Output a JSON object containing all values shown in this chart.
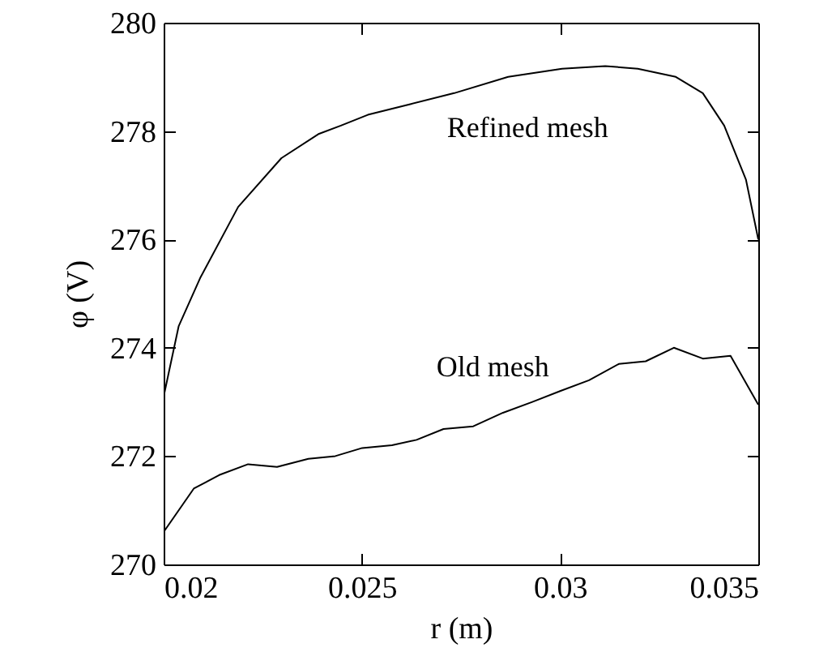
{
  "chart_data": {
    "type": "line",
    "xlabel": "r (m)",
    "ylabel": "φ (V)",
    "xlim": [
      0.02,
      0.035
    ],
    "xticks": [
      0.02,
      0.025,
      0.03,
      0.035
    ],
    "ylim": [
      270,
      280
    ],
    "yticks": [
      270,
      272,
      274,
      276,
      278,
      280
    ],
    "grid": false,
    "series": [
      {
        "name": "Refined mesh",
        "color": "#000000",
        "x": [
          0.02,
          0.02038,
          0.02093,
          0.02188,
          0.02297,
          0.02392,
          0.02447,
          0.02515,
          0.02624,
          0.02733,
          0.02869,
          0.03005,
          0.03114,
          0.03196,
          0.03292,
          0.0336,
          0.03414,
          0.03469,
          0.035
        ],
        "values": [
          273.1,
          274.4,
          275.3,
          276.6,
          277.5,
          277.95,
          278.1,
          278.3,
          278.5,
          278.7,
          279.0,
          279.15,
          279.2,
          279.15,
          279.0,
          278.7,
          278.1,
          277.1,
          276.0
        ]
      },
      {
        "name": "Old mesh",
        "color": "#000000",
        "x": [
          0.02,
          0.02076,
          0.0214,
          0.02213,
          0.02286,
          0.02365,
          0.02433,
          0.02501,
          0.02576,
          0.02638,
          0.02706,
          0.02781,
          0.02856,
          0.0293,
          0.03,
          0.03073,
          0.03148,
          0.03216,
          0.03287,
          0.0336,
          0.0343,
          0.035
        ],
        "values": [
          270.6,
          271.4,
          271.65,
          271.85,
          271.8,
          271.95,
          272.0,
          272.15,
          272.2,
          272.3,
          272.5,
          272.55,
          272.8,
          273.0,
          273.2,
          273.4,
          273.7,
          273.75,
          274.0,
          273.8,
          273.85,
          272.95
        ]
      }
    ]
  }
}
